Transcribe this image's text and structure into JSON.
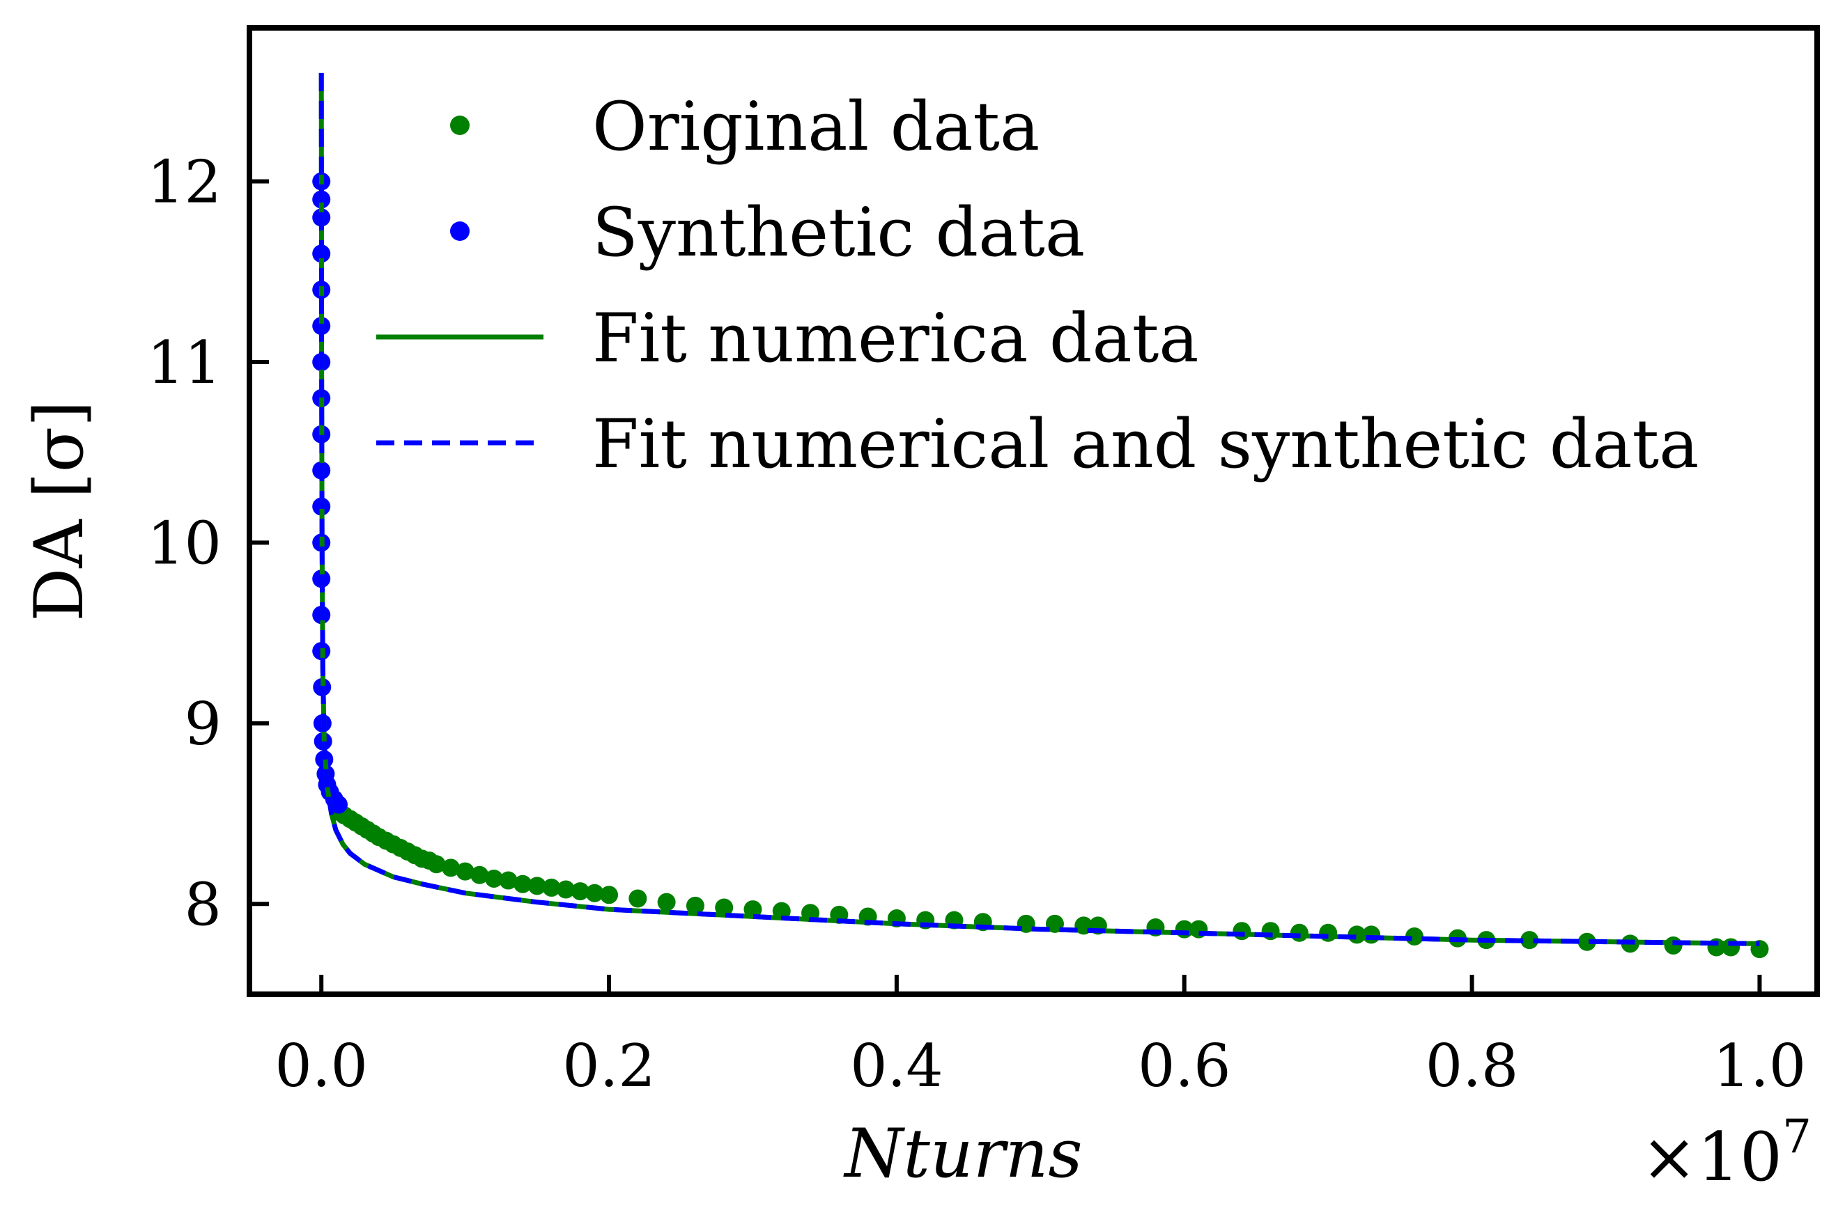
{
  "chart_data": {
    "type": "scatter",
    "xlabel": "Nturns",
    "ylabel": "DA [σ]",
    "x_offset_text": "×10",
    "x_offset_exponent": "7",
    "x_scale": 10000000,
    "xlim": [
      -0.05,
      1.04
    ],
    "ylim": [
      7.5,
      12.85
    ],
    "x_ticks": [
      0.0,
      0.2,
      0.4,
      0.6,
      0.8,
      1.0
    ],
    "x_tick_labels": [
      "0.0",
      "0.2",
      "0.4",
      "0.6",
      "0.8",
      "1.0"
    ],
    "y_ticks": [
      8,
      9,
      10,
      11,
      12
    ],
    "y_tick_labels": [
      "8",
      "9",
      "10",
      "11",
      "12"
    ],
    "grid": false,
    "legend_position": "top-right",
    "legend": [
      {
        "label": "Original data",
        "marker": "dot",
        "color": "#008000"
      },
      {
        "label": "Synthetic data",
        "marker": "dot",
        "color": "#0000ff"
      },
      {
        "label": "Fit numerica data",
        "marker": "solid-line",
        "color": "#008000"
      },
      {
        "label": "Fit numerical and synthetic data",
        "marker": "dashed-line",
        "color": "#0000ff"
      }
    ],
    "series": [
      {
        "name": "Original data",
        "kind": "points",
        "color": "#008000",
        "points": [
          [
            0.012,
            8.51
          ],
          [
            0.016,
            8.49
          ],
          [
            0.02,
            8.47
          ],
          [
            0.024,
            8.45
          ],
          [
            0.028,
            8.43
          ],
          [
            0.032,
            8.41
          ],
          [
            0.036,
            8.39
          ],
          [
            0.04,
            8.37
          ],
          [
            0.045,
            8.35
          ],
          [
            0.05,
            8.33
          ],
          [
            0.055,
            8.31
          ],
          [
            0.06,
            8.29
          ],
          [
            0.065,
            8.27
          ],
          [
            0.07,
            8.25
          ],
          [
            0.075,
            8.24
          ],
          [
            0.08,
            8.22
          ],
          [
            0.09,
            8.2
          ],
          [
            0.1,
            8.18
          ],
          [
            0.11,
            8.16
          ],
          [
            0.12,
            8.14
          ],
          [
            0.13,
            8.13
          ],
          [
            0.14,
            8.11
          ],
          [
            0.15,
            8.1
          ],
          [
            0.16,
            8.09
          ],
          [
            0.17,
            8.08
          ],
          [
            0.18,
            8.07
          ],
          [
            0.19,
            8.06
          ],
          [
            0.2,
            8.05
          ],
          [
            0.22,
            8.03
          ],
          [
            0.24,
            8.01
          ],
          [
            0.26,
            7.99
          ],
          [
            0.28,
            7.98
          ],
          [
            0.3,
            7.97
          ],
          [
            0.32,
            7.96
          ],
          [
            0.34,
            7.95
          ],
          [
            0.36,
            7.94
          ],
          [
            0.38,
            7.93
          ],
          [
            0.4,
            7.92
          ],
          [
            0.42,
            7.91
          ],
          [
            0.44,
            7.91
          ],
          [
            0.46,
            7.9
          ],
          [
            0.49,
            7.89
          ],
          [
            0.51,
            7.89
          ],
          [
            0.53,
            7.88
          ],
          [
            0.54,
            7.88
          ],
          [
            0.58,
            7.87
          ],
          [
            0.6,
            7.86
          ],
          [
            0.61,
            7.86
          ],
          [
            0.64,
            7.85
          ],
          [
            0.66,
            7.85
          ],
          [
            0.68,
            7.84
          ],
          [
            0.7,
            7.84
          ],
          [
            0.72,
            7.83
          ],
          [
            0.73,
            7.83
          ],
          [
            0.76,
            7.82
          ],
          [
            0.79,
            7.81
          ],
          [
            0.81,
            7.8
          ],
          [
            0.84,
            7.8
          ],
          [
            0.88,
            7.79
          ],
          [
            0.91,
            7.78
          ],
          [
            0.94,
            7.77
          ],
          [
            0.97,
            7.76
          ],
          [
            0.98,
            7.76
          ],
          [
            1.0,
            7.75
          ]
        ]
      },
      {
        "name": "Synthetic data",
        "kind": "points",
        "color": "#0000ff",
        "points": [
          [
            0.0,
            12.0
          ],
          [
            0.0,
            11.9
          ],
          [
            0.0,
            11.8
          ],
          [
            0.0,
            11.6
          ],
          [
            0.0,
            11.4
          ],
          [
            0.0,
            11.2
          ],
          [
            0.0,
            11.0
          ],
          [
            0.0,
            10.8
          ],
          [
            0.0,
            10.6
          ],
          [
            0.0,
            10.4
          ],
          [
            0.0,
            10.2
          ],
          [
            0.0,
            10.0
          ],
          [
            0.0,
            9.8
          ],
          [
            0.0,
            9.6
          ],
          [
            0.0,
            9.4
          ],
          [
            0.0005,
            9.2
          ],
          [
            0.0008,
            9.0
          ],
          [
            0.0012,
            8.9
          ],
          [
            0.002,
            8.8
          ],
          [
            0.003,
            8.72
          ],
          [
            0.004,
            8.66
          ],
          [
            0.006,
            8.62
          ],
          [
            0.009,
            8.58
          ],
          [
            0.012,
            8.55
          ]
        ]
      },
      {
        "name": "Fit numerica data",
        "kind": "line",
        "style": "solid",
        "color": "#008000",
        "points": [
          [
            0.0,
            12.6
          ],
          [
            0.0002,
            11.0
          ],
          [
            0.0005,
            10.0
          ],
          [
            0.001,
            9.3
          ],
          [
            0.002,
            8.9
          ],
          [
            0.004,
            8.65
          ],
          [
            0.007,
            8.5
          ],
          [
            0.01,
            8.41
          ],
          [
            0.015,
            8.33
          ],
          [
            0.02,
            8.28
          ],
          [
            0.03,
            8.22
          ],
          [
            0.05,
            8.15
          ],
          [
            0.07,
            8.11
          ],
          [
            0.1,
            8.06
          ],
          [
            0.15,
            8.01
          ],
          [
            0.2,
            7.97
          ],
          [
            0.3,
            7.93
          ],
          [
            0.4,
            7.89
          ],
          [
            0.5,
            7.86
          ],
          [
            0.6,
            7.84
          ],
          [
            0.7,
            7.82
          ],
          [
            0.8,
            7.8
          ],
          [
            0.9,
            7.79
          ],
          [
            1.0,
            7.78
          ]
        ]
      },
      {
        "name": "Fit numerical and synthetic data",
        "kind": "line",
        "style": "dashed",
        "color": "#0000ff",
        "points": [
          [
            0.0,
            12.6
          ],
          [
            0.0002,
            11.0
          ],
          [
            0.0005,
            10.0
          ],
          [
            0.001,
            9.3
          ],
          [
            0.002,
            8.9
          ],
          [
            0.004,
            8.65
          ],
          [
            0.007,
            8.5
          ],
          [
            0.01,
            8.41
          ],
          [
            0.015,
            8.33
          ],
          [
            0.02,
            8.28
          ],
          [
            0.03,
            8.22
          ],
          [
            0.05,
            8.15
          ],
          [
            0.07,
            8.11
          ],
          [
            0.1,
            8.06
          ],
          [
            0.15,
            8.01
          ],
          [
            0.2,
            7.97
          ],
          [
            0.3,
            7.93
          ],
          [
            0.4,
            7.89
          ],
          [
            0.5,
            7.86
          ],
          [
            0.6,
            7.84
          ],
          [
            0.7,
            7.82
          ],
          [
            0.8,
            7.8
          ],
          [
            0.9,
            7.79
          ],
          [
            1.0,
            7.78
          ]
        ]
      }
    ]
  }
}
